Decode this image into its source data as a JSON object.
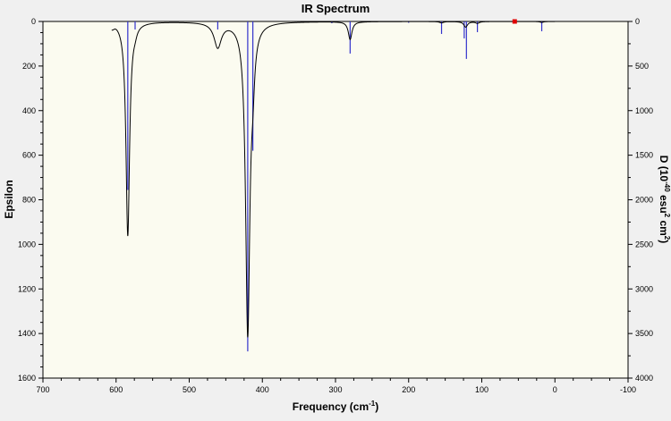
{
  "chart_data": {
    "type": "line",
    "title": "IR Spectrum",
    "xlabel": "Frequency (cm",
    "xlabel_sup": "-1",
    "xlabel_end": ")",
    "ylabel": "Epsilon",
    "y2label_prefix": "D (10",
    "y2label_sup1": "-40",
    "y2label_mid": " esu",
    "y2label_sup2": "2",
    "y2label_mid2": " cm",
    "y2label_sup3": "2",
    "y2label_end": ")",
    "xlim": [
      700,
      -100
    ],
    "ylim": [
      0,
      1600
    ],
    "y2lim": [
      0,
      4000
    ],
    "y_inverted": true,
    "x_ticks": [
      "700",
      "600",
      "500",
      "400",
      "300",
      "200",
      "100",
      "0",
      "-100"
    ],
    "y_ticks": [
      "0",
      "200",
      "400",
      "600",
      "800",
      "1000",
      "1200",
      "1400",
      "1600"
    ],
    "y2_ticks": [
      "0",
      "500",
      "1000",
      "1500",
      "2000",
      "2500",
      "3000",
      "3500",
      "4000"
    ],
    "x_tick_values": [
      700,
      600,
      500,
      400,
      300,
      200,
      100,
      0,
      -100
    ],
    "y_tick_values": [
      0,
      200,
      400,
      600,
      800,
      1000,
      1200,
      1400,
      1600
    ],
    "y2_tick_values": [
      0,
      500,
      1000,
      1500,
      2000,
      2500,
      3000,
      3500,
      4000
    ],
    "spectrum_peaks": [
      {
        "x": 584,
        "height": 960,
        "width": 3
      },
      {
        "x": 574,
        "height": 20,
        "width": 3
      },
      {
        "x": 461,
        "height": 110,
        "width": 6
      },
      {
        "x": 420,
        "height": 1390,
        "width": 3.5
      },
      {
        "x": 413,
        "height": 160,
        "width": 3
      },
      {
        "x": 280,
        "height": 80,
        "width": 3
      },
      {
        "x": 155,
        "height": 6,
        "width": 3
      },
      {
        "x": 122,
        "height": 25,
        "width": 3
      },
      {
        "x": 106,
        "height": 8,
        "width": 3
      },
      {
        "x": 18,
        "height": 4,
        "width": 3
      }
    ],
    "spectrum_range": [
      606,
      0
    ],
    "stick_lines": [
      {
        "x": 584,
        "D": 1890
      },
      {
        "x": 574,
        "D": 90
      },
      {
        "x": 461,
        "D": 90
      },
      {
        "x": 420,
        "D": 3700
      },
      {
        "x": 413,
        "D": 1450
      },
      {
        "x": 305,
        "D": 20
      },
      {
        "x": 280,
        "D": 360
      },
      {
        "x": 200,
        "D": 15
      },
      {
        "x": 155,
        "D": 140
      },
      {
        "x": 124,
        "D": 190
      },
      {
        "x": 121,
        "D": 420
      },
      {
        "x": 106,
        "D": 120
      },
      {
        "x": 18,
        "D": 110
      }
    ],
    "marker": {
      "x": 55,
      "y": 0
    },
    "grid": false,
    "colors": {
      "plot_bg": "#fbfbf0",
      "page_bg": "#f0f0f0",
      "spectrum": "#000000",
      "sticks": "#3333cc",
      "marker": "#e00000",
      "axis": "#000000"
    }
  }
}
